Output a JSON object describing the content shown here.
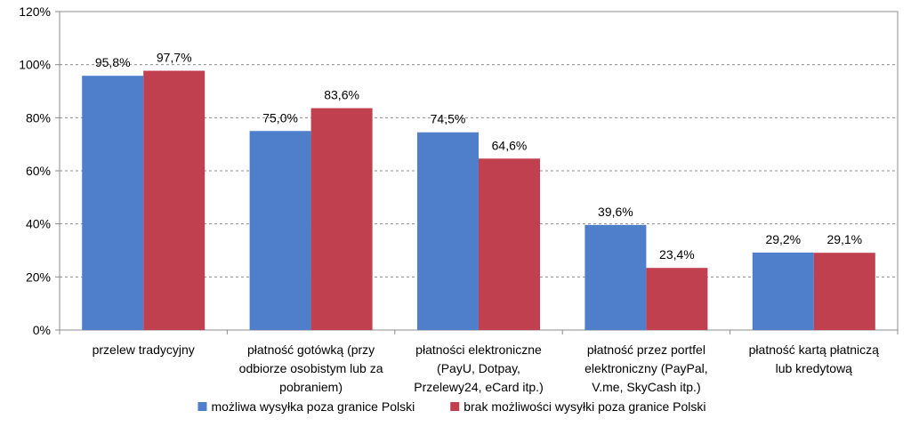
{
  "chart_data": {
    "type": "bar",
    "categories": [
      [
        "przelew tradycyjny"
      ],
      [
        "płatność gotówką (przy",
        "odbiorze osobistym lub za",
        "pobraniem)"
      ],
      [
        "płatności elektroniczne",
        "(PayU, Dotpay,",
        "Przelewy24, eCard itp.)"
      ],
      [
        "płatność przez portfel",
        "elektroniczny (PayPal,",
        "V.me, SkyCash itp.)"
      ],
      [
        "płatność kartą płatniczą",
        "lub kredytową"
      ]
    ],
    "series": [
      {
        "name": "możliwa wysyłka poza granice Polski",
        "color": "#4F7ECB",
        "values": [
          95.8,
          75.0,
          74.5,
          39.6,
          29.2
        ],
        "labels": [
          "95,8%",
          "75,0%",
          "74,5%",
          "39,6%",
          "29,2%"
        ]
      },
      {
        "name": "brak możliwości wysyłki poza granice Polski",
        "color": "#C0404F",
        "values": [
          97.7,
          83.6,
          64.6,
          23.4,
          29.1
        ],
        "labels": [
          "97,7%",
          "83,6%",
          "64,6%",
          "23,4%",
          "29,1%"
        ]
      }
    ],
    "y_ticks": [
      "0%",
      "20%",
      "40%",
      "60%",
      "80%",
      "100%",
      "120%"
    ],
    "ylim": [
      0,
      120
    ],
    "grid": true,
    "legend_position": "bottom"
  }
}
